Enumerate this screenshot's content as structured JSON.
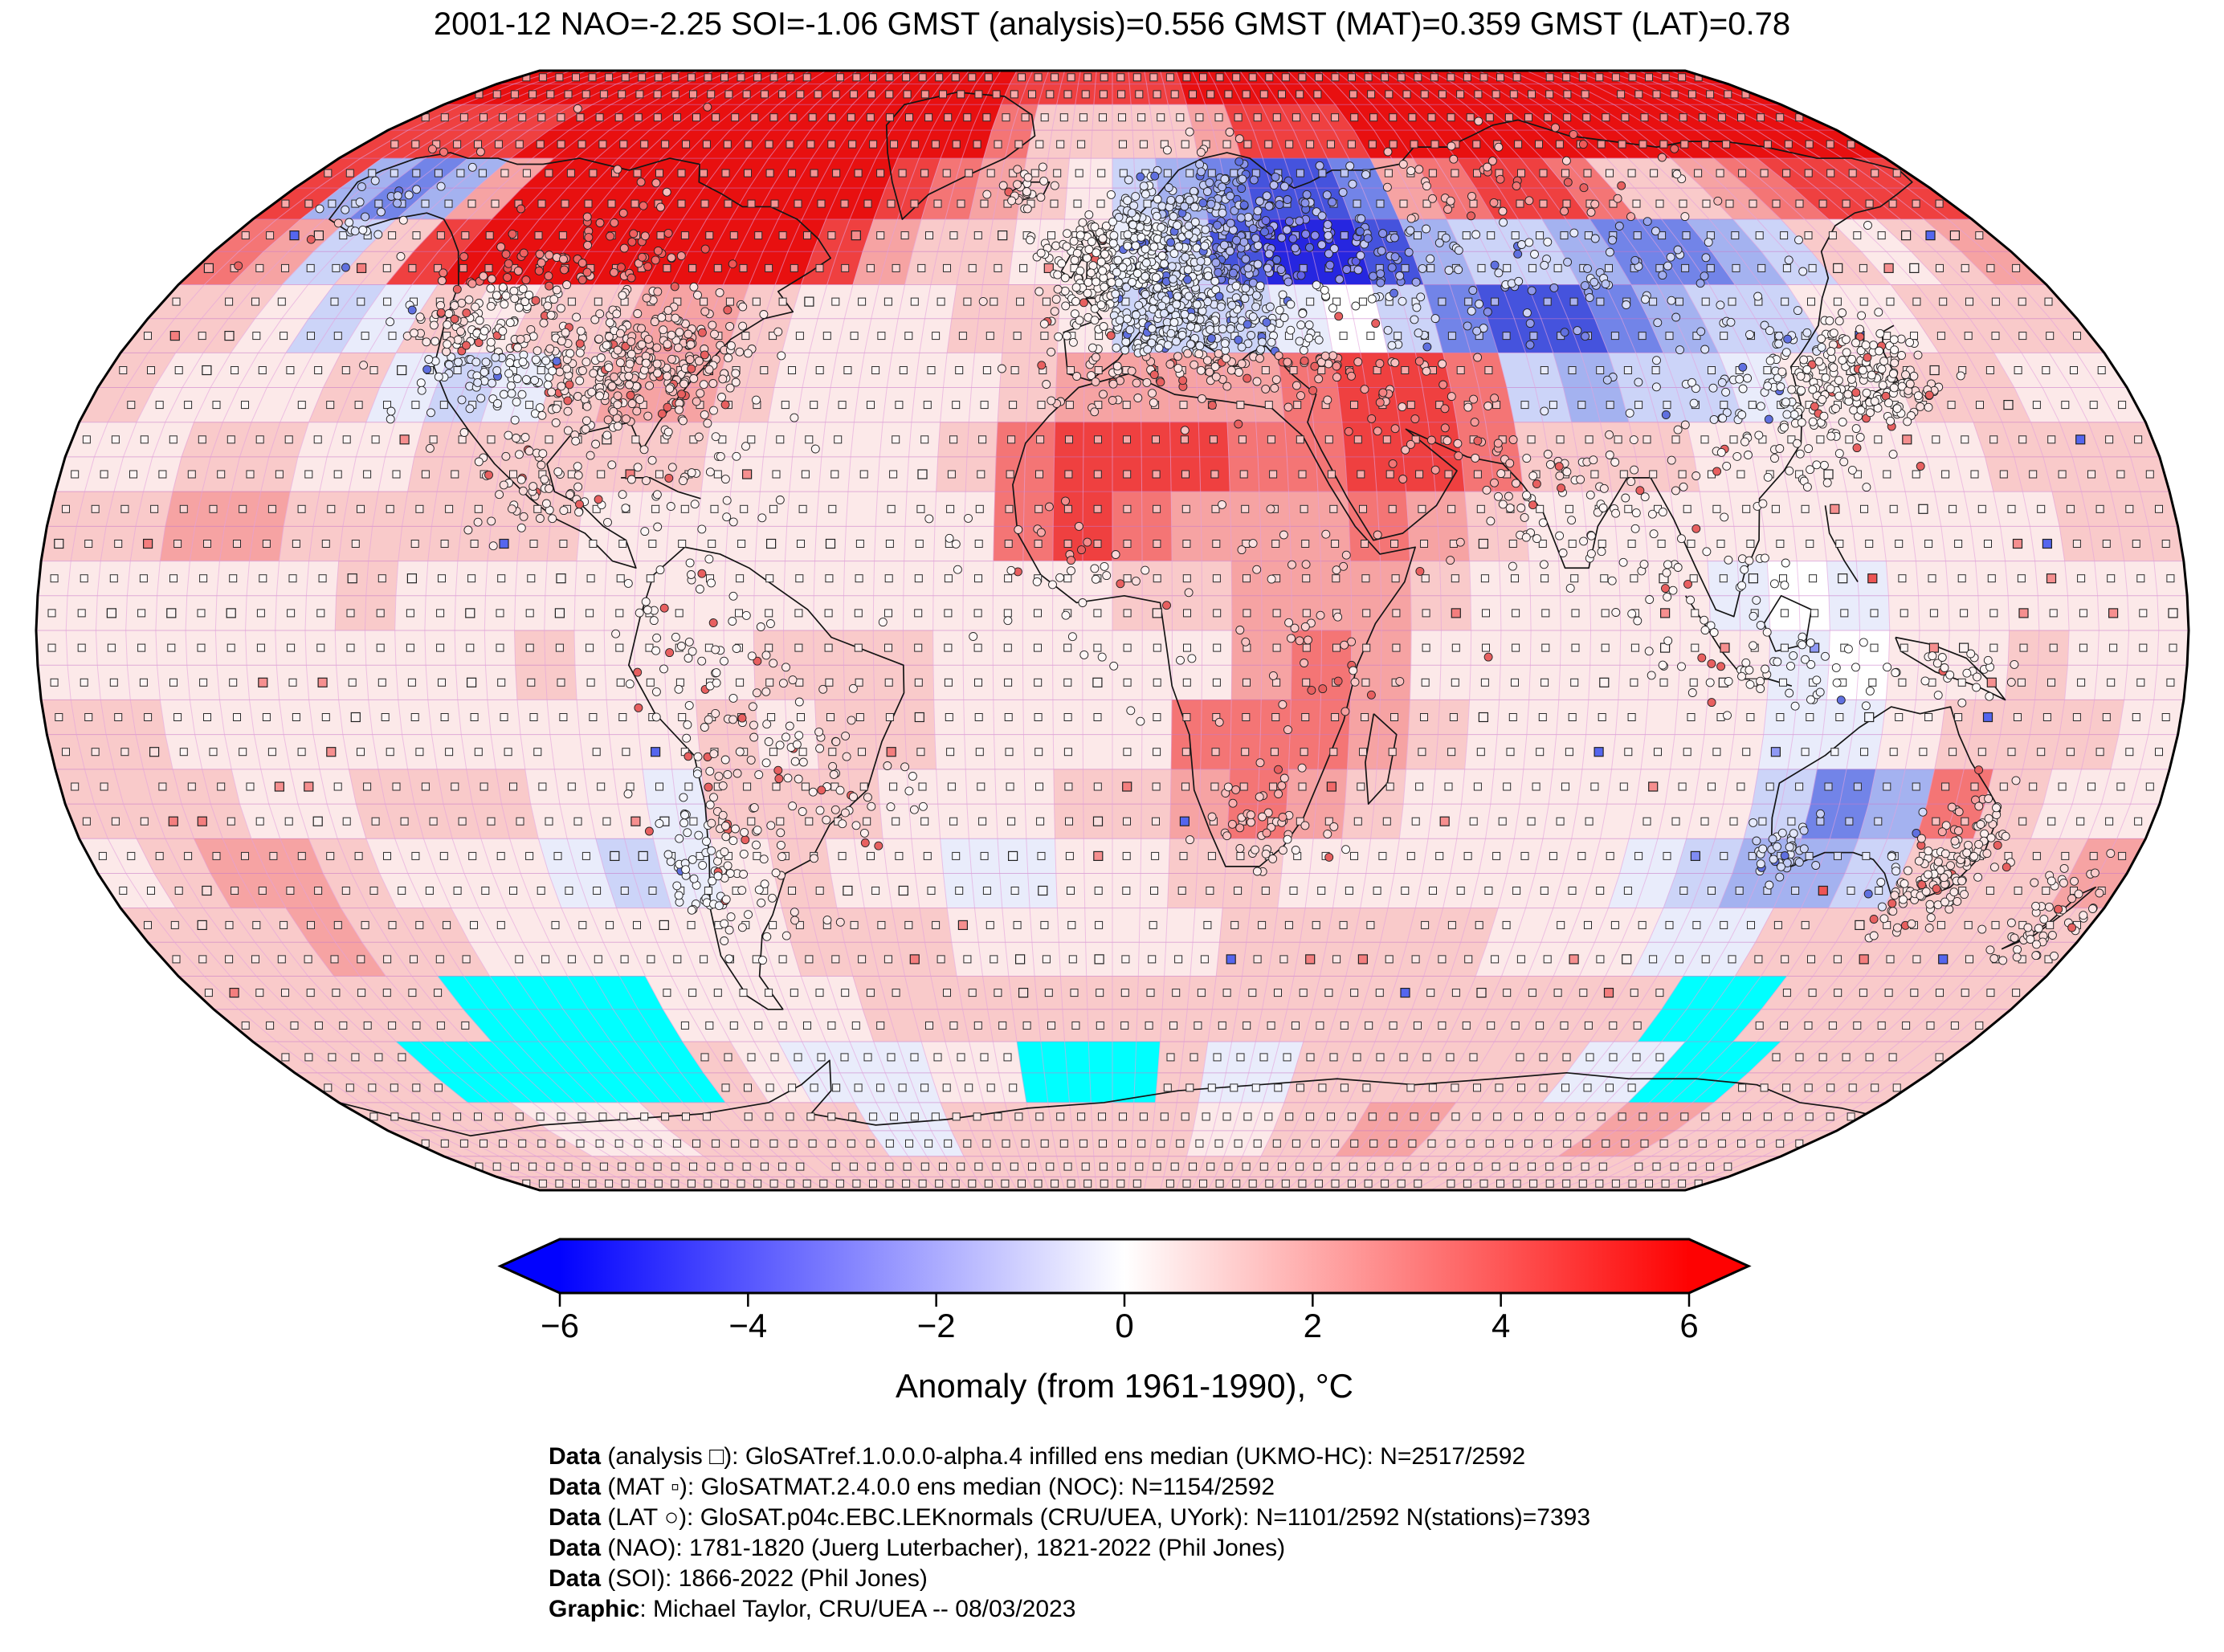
{
  "title": "2001-12 NAO=-2.25 SOI=-1.06 GMST (analysis)=0.556 GMST (MAT)=0.359 GMST (LAT)=0.78",
  "footer": {
    "lines": [
      {
        "prefix": "Data",
        "text": " (analysis □): GloSATref.1.0.0.0-alpha.4 infilled ens median (UKMO-HC): N=2517/2592"
      },
      {
        "prefix": "Data",
        "text": " (MAT ▫): GloSATMAT.2.4.0.0 ens median (NOC): N=1154/2592"
      },
      {
        "prefix": "Data",
        "text": " (LAT ○): GloSAT.p04c.EBC.LEKnormals (CRU/UEA, UYork): N=1101/2592 N(stations)=7393"
      },
      {
        "prefix": "Data",
        "text": " (NAO): 1781-1820 (Juerg Luterbacher), 1821-2022 (Phil Jones)"
      },
      {
        "prefix": "Data",
        "text": " (SOI): 1866-2022 (Phil Jones)"
      },
      {
        "prefix": "Graphic",
        "text": ": Michael Taylor, CRU/UEA -- 08/03/2023"
      }
    ]
  },
  "chart_data": {
    "type": "heatmap",
    "subtype": "global-anomaly-map",
    "projection": "robinson",
    "title": "2001-12 NAO=-2.25 SOI=-1.06 GMST (analysis)=0.556 GMST (MAT)=0.359 GMST (LAT)=0.78",
    "period": "2001-12",
    "indices": {
      "NAO": -2.25,
      "SOI": -1.06,
      "GMST_analysis": 0.556,
      "GMST_MAT": 0.359,
      "GMST_LAT": 0.78
    },
    "datasets": [
      {
        "name": "analysis",
        "marker": "open-square",
        "source": "GloSATref.1.0.0.0-alpha.4 infilled ens median (UKMO-HC)",
        "coverage": "N=2517/2592"
      },
      {
        "name": "MAT",
        "marker": "filled-square",
        "source": "GloSATMAT.2.4.0.0 ens median (NOC)",
        "coverage": "N=1154/2592"
      },
      {
        "name": "LAT",
        "marker": "open-circle",
        "source": "GloSAT.p04c.EBC.LEKnormals (CRU/UEA, UYork)",
        "coverage": "N=1101/2592 N(stations)=7393"
      }
    ],
    "colorbar": {
      "label": "Anomaly (from 1961-1990), °C",
      "min": -6,
      "max": 6,
      "ticks": [
        -6,
        -4,
        -2,
        0,
        2,
        4,
        6
      ],
      "color_low": "#0202fe",
      "color_mid": "#ffffff",
      "color_high": "#fe0202",
      "missing_color": "#00ffff"
    },
    "grid": {
      "cell_deg": 10,
      "note": "rows north-to-south (90N..90S), 36 columns west-to-east (180W..180E); letters index palette; C = missing/cyan",
      "palette": {
        "9": "#e81010",
        "8": "#ef4040",
        "7": "#f47575",
        "6": "#f6a3a3",
        "5": "#f9caca",
        "4": "#fce9e9",
        "0": "#ffffff",
        "a": "#e9ecfb",
        "b": "#ccd4f8",
        "c": "#a4b2f0",
        "d": "#7284e8",
        "e": "#4553dd",
        "f": "#2626e0",
        "C": "#00ffff"
      },
      "rows": [
        "999999999999999888889999999999999999",
        "888899999999999755556888999999999999",
        "8cdc69999999987654bcdeed678875567888",
        "76b589999999865544abeffecbbcddcb5456",
        "554ba5455665444554bbba0bdeedcbb44555",
        "54445aba56654444566667887bcbba445544",
        "445544555554444578887788755544444555",
        "556655555444444478766676544444444455",
        "4444454444444444445566654444a0a44444",
        "44444444544455544444676444444a044544",
        "55444444444545544447776544444aa45554",
        "5554455544a555444556765444444bdc7544",
        "45665444aba4544aa4455444444abccb5556",
        "5556554444445554444455555444aa555555",
        "55555CCCC44445555555555555555CC55555",
        "555CCCCCC54aaa44CCC5aa555555aaCC5555",
        "555544455555aa5555554455665555665555",
        "555555555555555555555555555555555555"
      ]
    }
  }
}
